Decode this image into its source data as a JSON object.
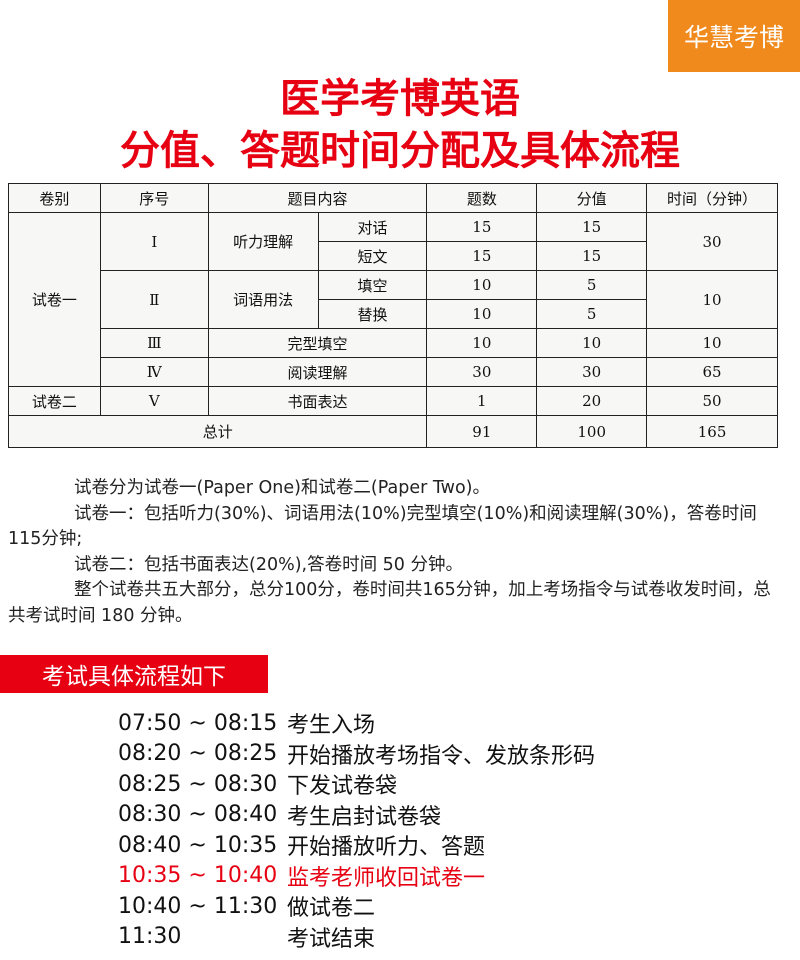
{
  "brand": "华慧考博",
  "title": {
    "line1": "医学考博英语",
    "line2": "分值、答题时间分配及具体流程"
  },
  "table": {
    "headers": [
      "卷别",
      "序号",
      "题目内容",
      "题数",
      "分值",
      "时间（分钟）"
    ],
    "paper1": "试卷一",
    "paper2": "试卷二",
    "total_label": "总计",
    "rows": [
      {
        "no": "Ⅰ",
        "section": "听力理解",
        "sub": "对话",
        "count": "15",
        "score": "15",
        "time": "30"
      },
      {
        "sub": "短文",
        "count": "15",
        "score": "15"
      },
      {
        "no": "Ⅱ",
        "section": "词语用法",
        "sub": "填空",
        "count": "10",
        "score": "5",
        "time": "10"
      },
      {
        "sub": "替换",
        "count": "10",
        "score": "5"
      },
      {
        "no": "Ⅲ",
        "section": "完型填空",
        "count": "10",
        "score": "10",
        "time": "10"
      },
      {
        "no": "Ⅳ",
        "section": "阅读理解",
        "count": "30",
        "score": "30",
        "time": "65"
      },
      {
        "no": "Ⅴ",
        "section": "书面表达",
        "count": "1",
        "score": "20",
        "time": "50"
      }
    ],
    "total": {
      "count": "91",
      "score": "100",
      "time": "165"
    }
  },
  "paragraphs": [
    "试卷分为试卷一(Paper One)和试卷二(Paper Two)。",
    "试卷一：包括听力(30%)、词语用法(10%)完型填空(10%)和阅读理解(30%)，答卷时间115分钟;",
    "试卷二：包括书面表达(20%),答卷时间 50 分钟。",
    "整个试卷共五大部分，总分100分，卷时间共165分钟，加上考场指令与试卷收发时间，总共考试时间 180 分钟。"
  ],
  "schedule_title": "考试具体流程如下",
  "schedule": [
    {
      "time": "07:50 ~ 08:15",
      "event": "考生入场"
    },
    {
      "time": "08:20 ~ 08:25",
      "event": "开始播放考场指令、发放条形码"
    },
    {
      "time": "08:25 ~ 08:30",
      "event": "下发试卷袋"
    },
    {
      "time": "08:30 ~ 08:40",
      "event": "考生启封试卷袋"
    },
    {
      "time": "08:40 ~ 10:35",
      "event": "开始播放听力、答题"
    },
    {
      "time": "10:35 ~ 10:40",
      "event": "监考老师收回试卷一",
      "highlight": true
    },
    {
      "time": "10:40 ~ 11:30",
      "event": "做试卷二"
    },
    {
      "time": "11:30",
      "event": "考试结束"
    }
  ],
  "colors": {
    "brand_orange": "#f08a1c",
    "accent_red": "#e60012"
  }
}
